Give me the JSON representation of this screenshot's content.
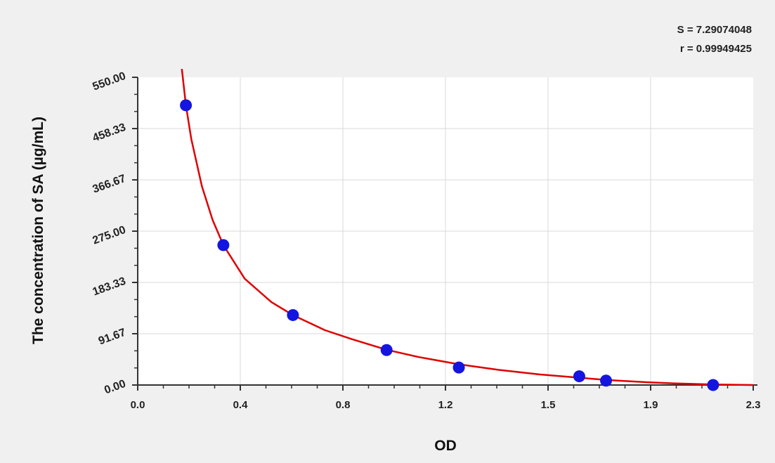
{
  "chart_data": {
    "type": "scatter",
    "title": "",
    "xlabel": "OD",
    "ylabel": "The concentration of  SA (µg/mL)",
    "xlim": [
      0.0,
      2.3
    ],
    "ylim": [
      0.0,
      550.0
    ],
    "x_ticks": [
      "0.0",
      "0.4",
      "0.8",
      "1.2",
      "1.5",
      "1.9",
      "2.3"
    ],
    "y_ticks": [
      "0.00",
      "91.67",
      "183.33",
      "275.00",
      "366.67",
      "458.33",
      "550.00"
    ],
    "grid": true,
    "series": [
      {
        "kind": "points",
        "color": "#1515e0",
        "x": [
          0.18,
          0.32,
          0.58,
          0.93,
          1.2,
          1.65,
          1.75,
          2.15
        ],
        "y": [
          500,
          250,
          125,
          62.5,
          31.25,
          15.6,
          7.8,
          0
        ]
      },
      {
        "kind": "fitted-curve",
        "color": "#e00000",
        "x": [
          0.165,
          0.18,
          0.2,
          0.24,
          0.28,
          0.32,
          0.4,
          0.5,
          0.58,
          0.7,
          0.8,
          0.93,
          1.05,
          1.2,
          1.35,
          1.5,
          1.65,
          1.75,
          1.9,
          2.0,
          2.15,
          2.3
        ],
        "y": [
          565,
          500,
          440,
          355,
          295,
          250,
          190,
          148,
          125,
          98,
          82,
          63,
          50,
          37,
          27,
          19,
          13,
          9,
          5,
          3,
          1,
          0
        ]
      }
    ],
    "annotations": [
      "S = 7.29074048",
      "r = 0.99949425"
    ]
  },
  "colors": {
    "background": "#f0f0f0",
    "plot_background": "#ffffff",
    "gridline": "#d8d8d8",
    "axis": "#333333",
    "points": "#1515e0",
    "curve": "#e00000"
  }
}
